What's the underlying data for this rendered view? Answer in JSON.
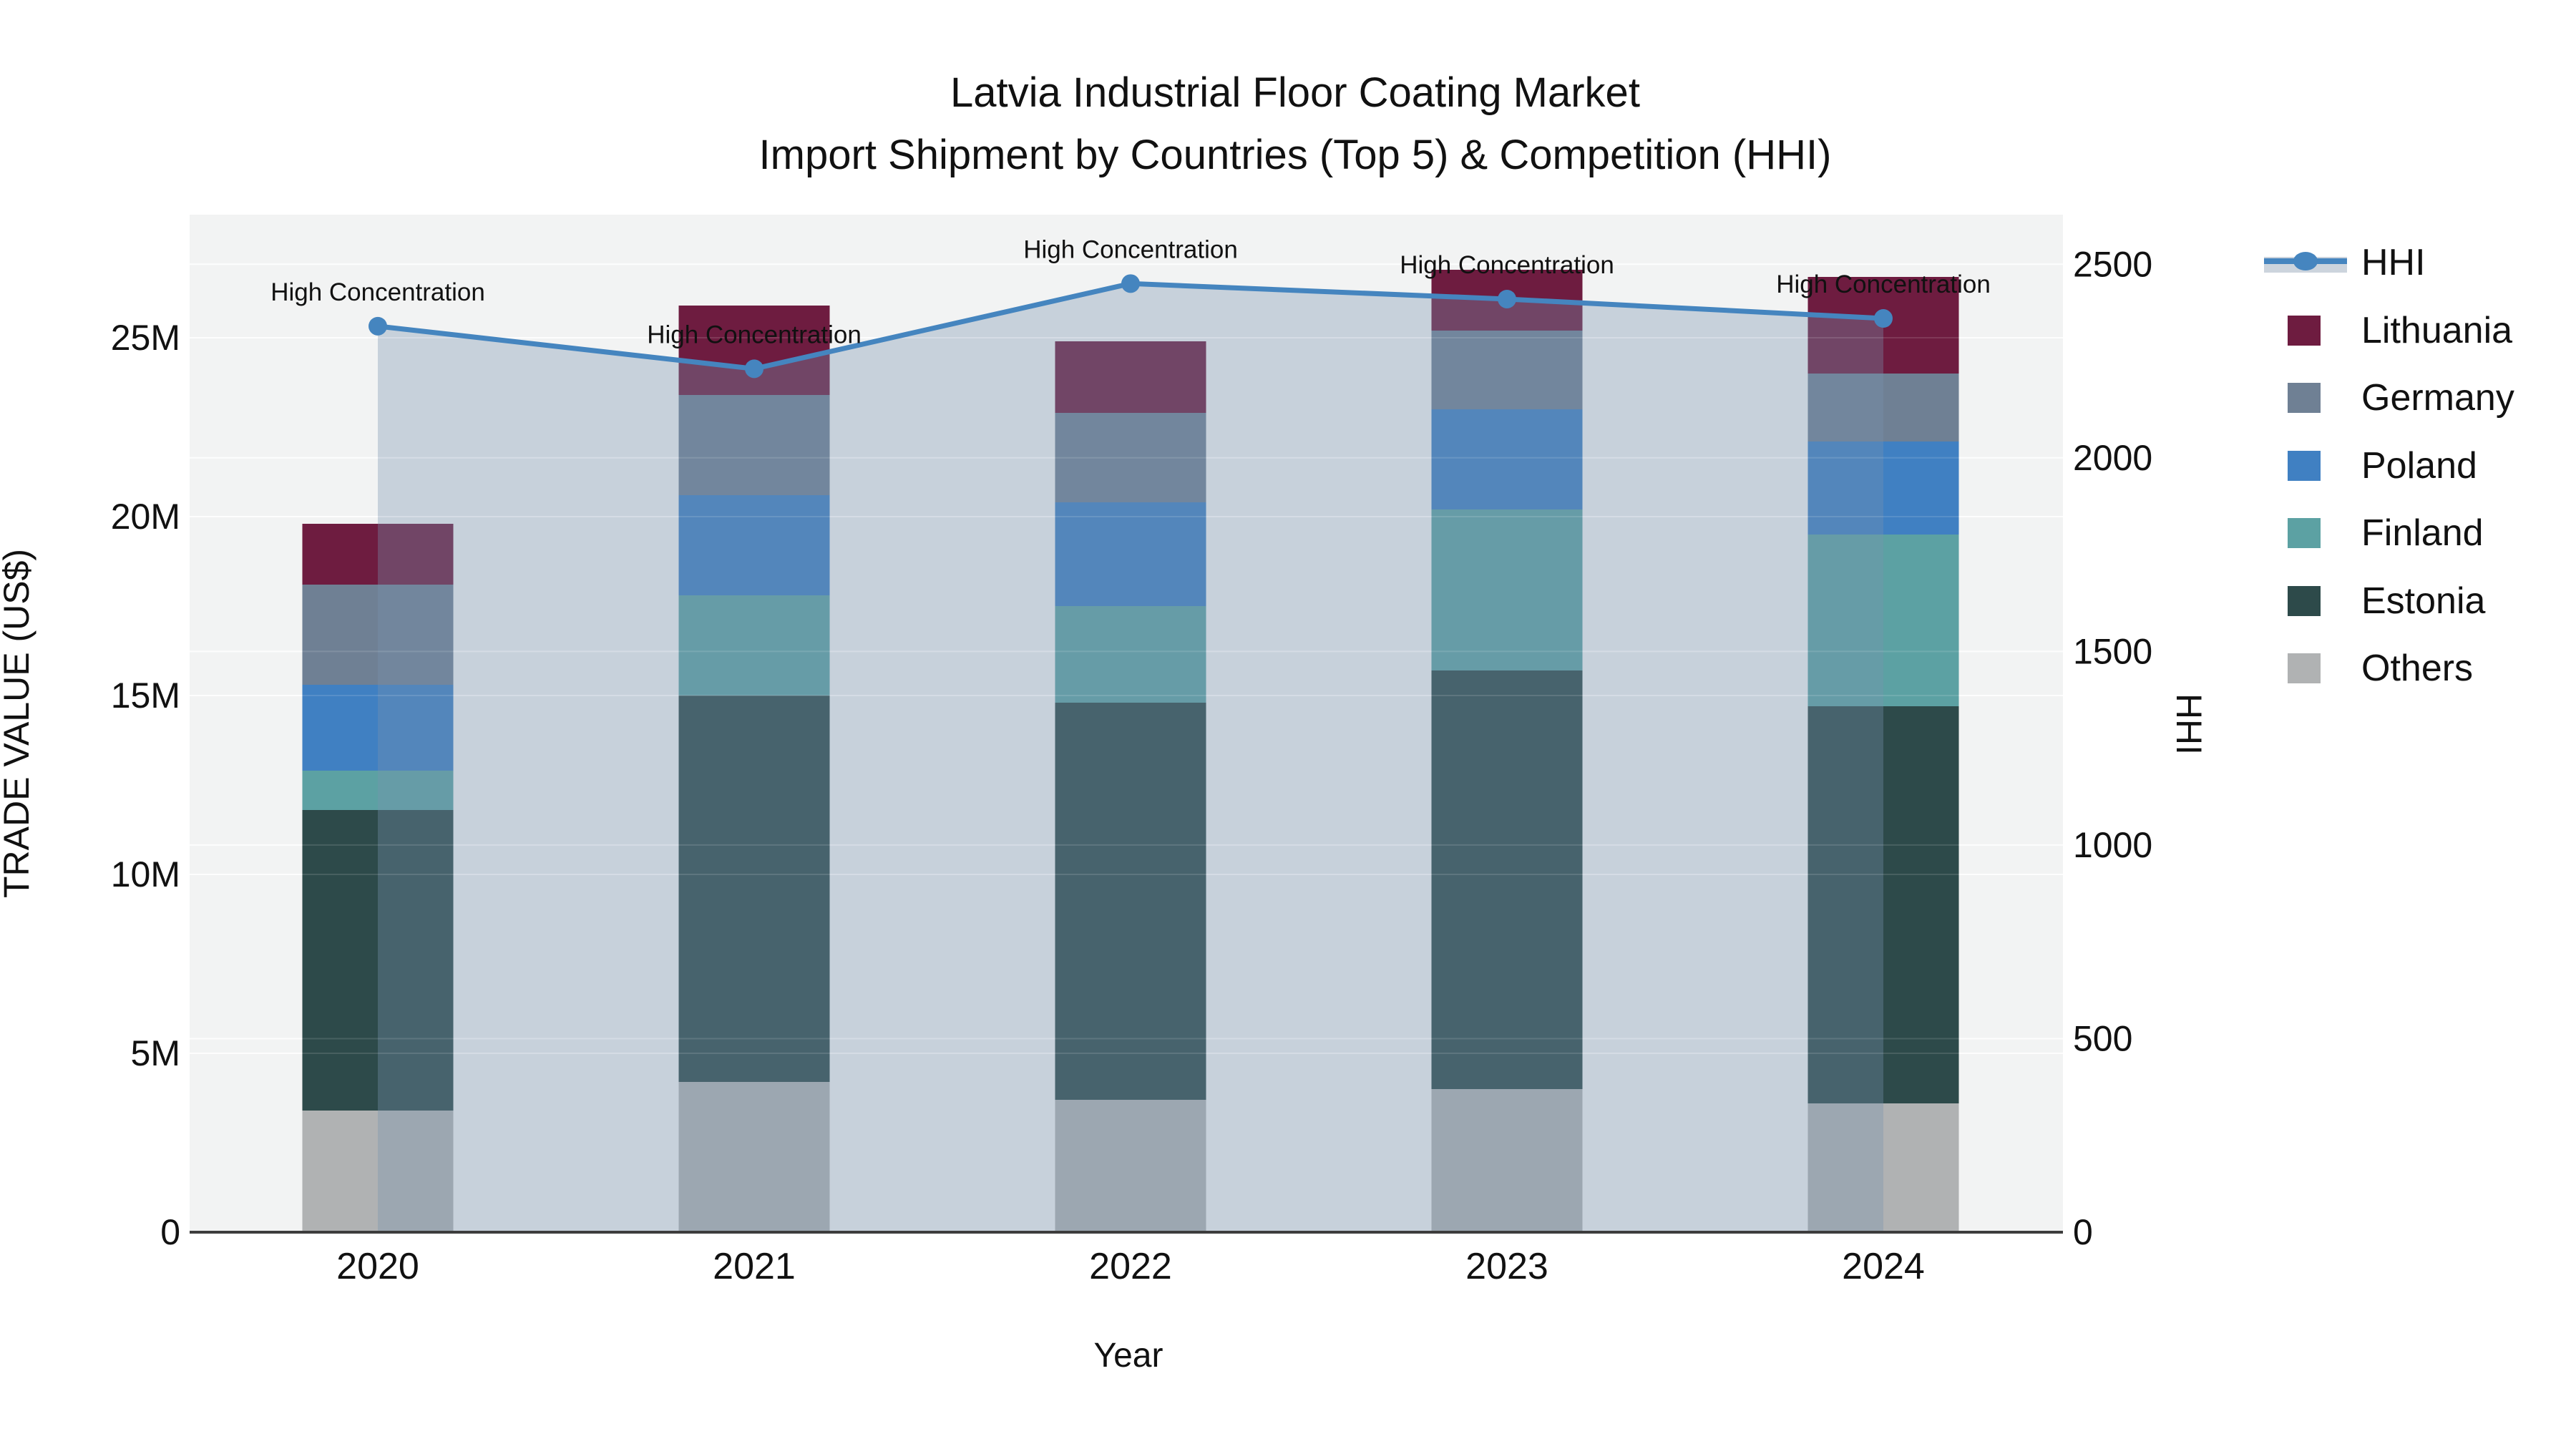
{
  "chart_data": {
    "type": "bar",
    "variant": "stacked-bars-with-line-overlay",
    "title": "Latvia Industrial Floor Coating Market",
    "subtitle": "Import Shipment by Countries (Top 5) & Competition (HHI)",
    "xlabel": "Year",
    "ylabel_left": "TRADE VALUE (US$)",
    "ylabel_right": "HHI",
    "categories": [
      "2020",
      "2021",
      "2022",
      "2023",
      "2024"
    ],
    "values_unit": "millions US$",
    "stack_order_bottom_to_top": [
      "Others",
      "Estonia",
      "Finland",
      "Poland",
      "Germany",
      "Lithuania"
    ],
    "series": [
      {
        "name": "Lithuania",
        "color": "#6e1c40",
        "values": [
          1.7,
          2.5,
          2.0,
          1.7,
          2.7
        ]
      },
      {
        "name": "Germany",
        "color": "#6f8094",
        "values": [
          2.8,
          2.8,
          2.5,
          2.2,
          1.9
        ]
      },
      {
        "name": "Poland",
        "color": "#4080c2",
        "values": [
          2.4,
          2.8,
          2.9,
          2.8,
          2.6
        ]
      },
      {
        "name": "Finland",
        "color": "#5ca1a3",
        "values": [
          1.1,
          2.8,
          2.7,
          4.5,
          4.8
        ]
      },
      {
        "name": "Estonia",
        "color": "#2d4a4a",
        "values": [
          8.4,
          10.8,
          11.1,
          11.7,
          11.1
        ]
      },
      {
        "name": "Others",
        "color": "#b0b2b3",
        "values": [
          3.4,
          4.2,
          3.7,
          4.0,
          3.6
        ]
      }
    ],
    "bar_totals_millions": [
      19.8,
      25.9,
      24.9,
      26.9,
      26.7
    ],
    "line_series": {
      "name": "HHI",
      "color": "#4585bf",
      "area_fill_color": "rgba(120,145,175,0.35)",
      "values": [
        2340,
        2230,
        2450,
        2410,
        2360
      ]
    },
    "annotations": [
      {
        "category": "2020",
        "text": "High Concentration"
      },
      {
        "category": "2021",
        "text": "High Concentration"
      },
      {
        "category": "2022",
        "text": "High Concentration"
      },
      {
        "category": "2023",
        "text": "High Concentration"
      },
      {
        "category": "2024",
        "text": "High Concentration"
      }
    ],
    "y_left": {
      "max": 28.44,
      "tick_values": [
        0,
        5,
        10,
        15,
        20,
        25
      ],
      "tick_labels": [
        "0",
        "5M",
        "10M",
        "15M",
        "20M",
        "25M"
      ]
    },
    "y_right": {
      "max": 2628,
      "tick_values": [
        0,
        500,
        1000,
        1500,
        2000,
        2500
      ],
      "tick_labels": [
        "0",
        "500",
        "1000",
        "1500",
        "2000",
        "2500"
      ]
    },
    "legend_order": [
      "HHI",
      "Lithuania",
      "Germany",
      "Poland",
      "Finland",
      "Estonia",
      "Others"
    ],
    "grid": "on",
    "plot_background": "#f2f3f3",
    "gridline_color": "#ffffff",
    "axis_line_color": "#3d3d3d"
  }
}
